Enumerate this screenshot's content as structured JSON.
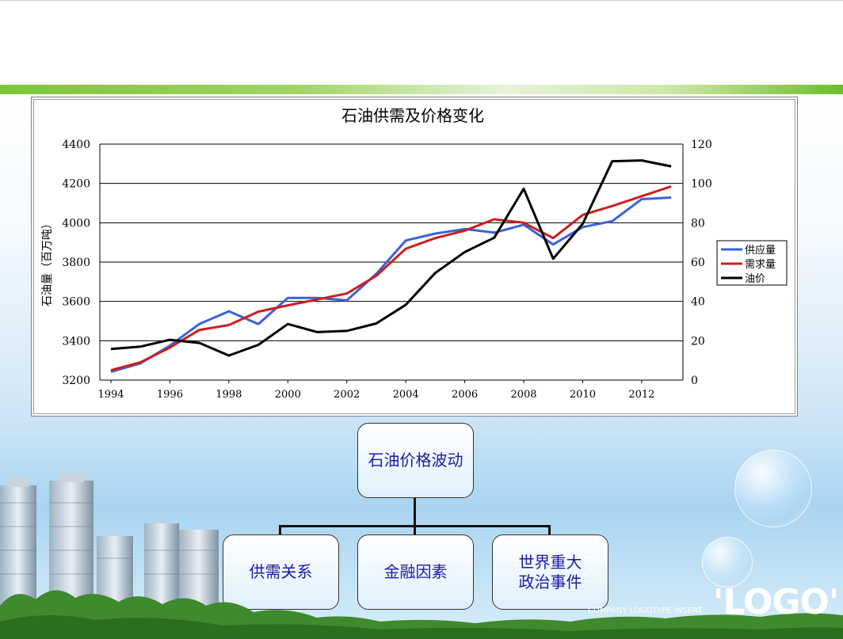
{
  "slide": {
    "logo_text": "'LOGO'",
    "logo_subtitle": "COMPANY LOGOTYPE INSERT"
  },
  "chart_data": {
    "type": "line",
    "title": "石油供需及价格变化",
    "ylabel": "石油量（百万吨）",
    "y2label": "",
    "x": [
      1994,
      1995,
      1996,
      1997,
      1998,
      1999,
      2000,
      2001,
      2002,
      2003,
      2004,
      2005,
      2006,
      2007,
      2008,
      2009,
      2010,
      2011,
      2012,
      2013
    ],
    "x_ticks": [
      "1994",
      "1996",
      "1998",
      "2000",
      "2002",
      "2004",
      "2006",
      "2008",
      "2010",
      "2012"
    ],
    "ylim": [
      3200,
      4400
    ],
    "y_ticks": [
      "3200",
      "3400",
      "3600",
      "3800",
      "4000",
      "4200",
      "4400"
    ],
    "y2lim": [
      0,
      120
    ],
    "y2_ticks": [
      "0",
      "20",
      "40",
      "60",
      "80",
      "100",
      "120"
    ],
    "grid": true,
    "legend_position": "right",
    "series": [
      {
        "name": "供应量",
        "axis": "left",
        "color": "#3a63d8",
        "values": [
          3242,
          3285,
          3375,
          3485,
          3550,
          3485,
          3618,
          3618,
          3605,
          3740,
          3910,
          3945,
          3968,
          3950,
          3990,
          3890,
          3978,
          4008,
          4120,
          4128
        ]
      },
      {
        "name": "需求量",
        "axis": "left",
        "color": "#cc1f1f",
        "values": [
          3250,
          3290,
          3365,
          3455,
          3480,
          3548,
          3580,
          3610,
          3640,
          3730,
          3868,
          3922,
          3960,
          4018,
          4000,
          3922,
          4040,
          4085,
          4135,
          4185
        ]
      },
      {
        "name": "油价",
        "axis": "right",
        "color": "#000000",
        "values": [
          15.8,
          17.0,
          20.5,
          18.9,
          12.5,
          17.9,
          28.5,
          24.4,
          25.0,
          28.8,
          38.3,
          54.5,
          65.1,
          72.4,
          97.3,
          61.7,
          79.5,
          111.3,
          111.7,
          108.7
        ]
      }
    ]
  },
  "diagram": {
    "root": "石油价格波动",
    "children": [
      "供需关系",
      "金融因素",
      "世界重大\n政治事件"
    ]
  }
}
